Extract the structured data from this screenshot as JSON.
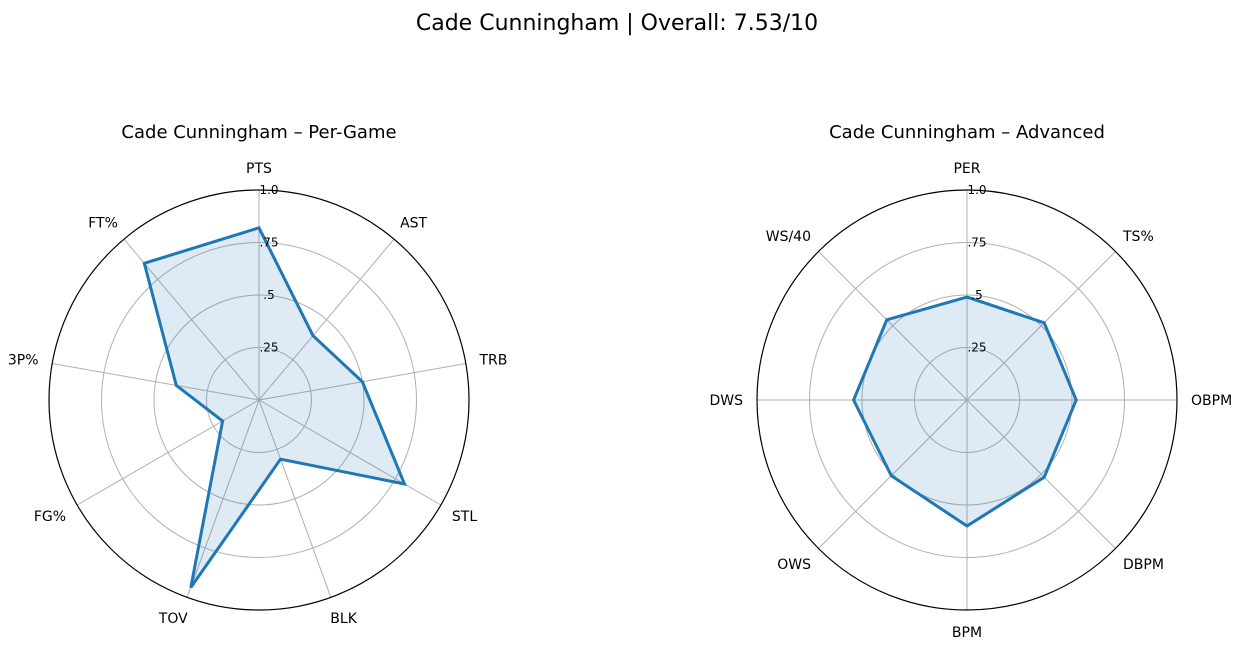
{
  "figure": {
    "title": "Cade Cunningham | Overall: 7.53/10"
  },
  "chart_data": [
    {
      "type": "radar",
      "title": "Cade Cunningham – Per-Game",
      "categories": [
        "PTS",
        "AST",
        "TRB",
        "STL",
        "BLK",
        "TOV",
        "FG%",
        "3P%",
        "FT%"
      ],
      "values": [
        0.82,
        0.4,
        0.5,
        0.8,
        0.3,
        0.95,
        0.2,
        0.4,
        0.85
      ],
      "rlim": [
        0,
        1
      ],
      "rticks": [
        0.25,
        0.5,
        0.75,
        1.0
      ],
      "rtick_labels": [
        ".25",
        ".5",
        ".75",
        "1.0"
      ],
      "color": "#1f77b4"
    },
    {
      "type": "radar",
      "title": "Cade Cunningham – Advanced",
      "categories": [
        "PER",
        "TS%",
        "OBPM",
        "DBPM",
        "BPM",
        "OWS",
        "DWS",
        "WS/40"
      ],
      "values": [
        0.49,
        0.52,
        0.52,
        0.52,
        0.6,
        0.51,
        0.54,
        0.54
      ],
      "rlim": [
        0,
        1
      ],
      "rticks": [
        0.25,
        0.5,
        0.75,
        1.0
      ],
      "rtick_labels": [
        ".25",
        ".5",
        ".75",
        "1.0"
      ],
      "color": "#1f77b4"
    }
  ]
}
